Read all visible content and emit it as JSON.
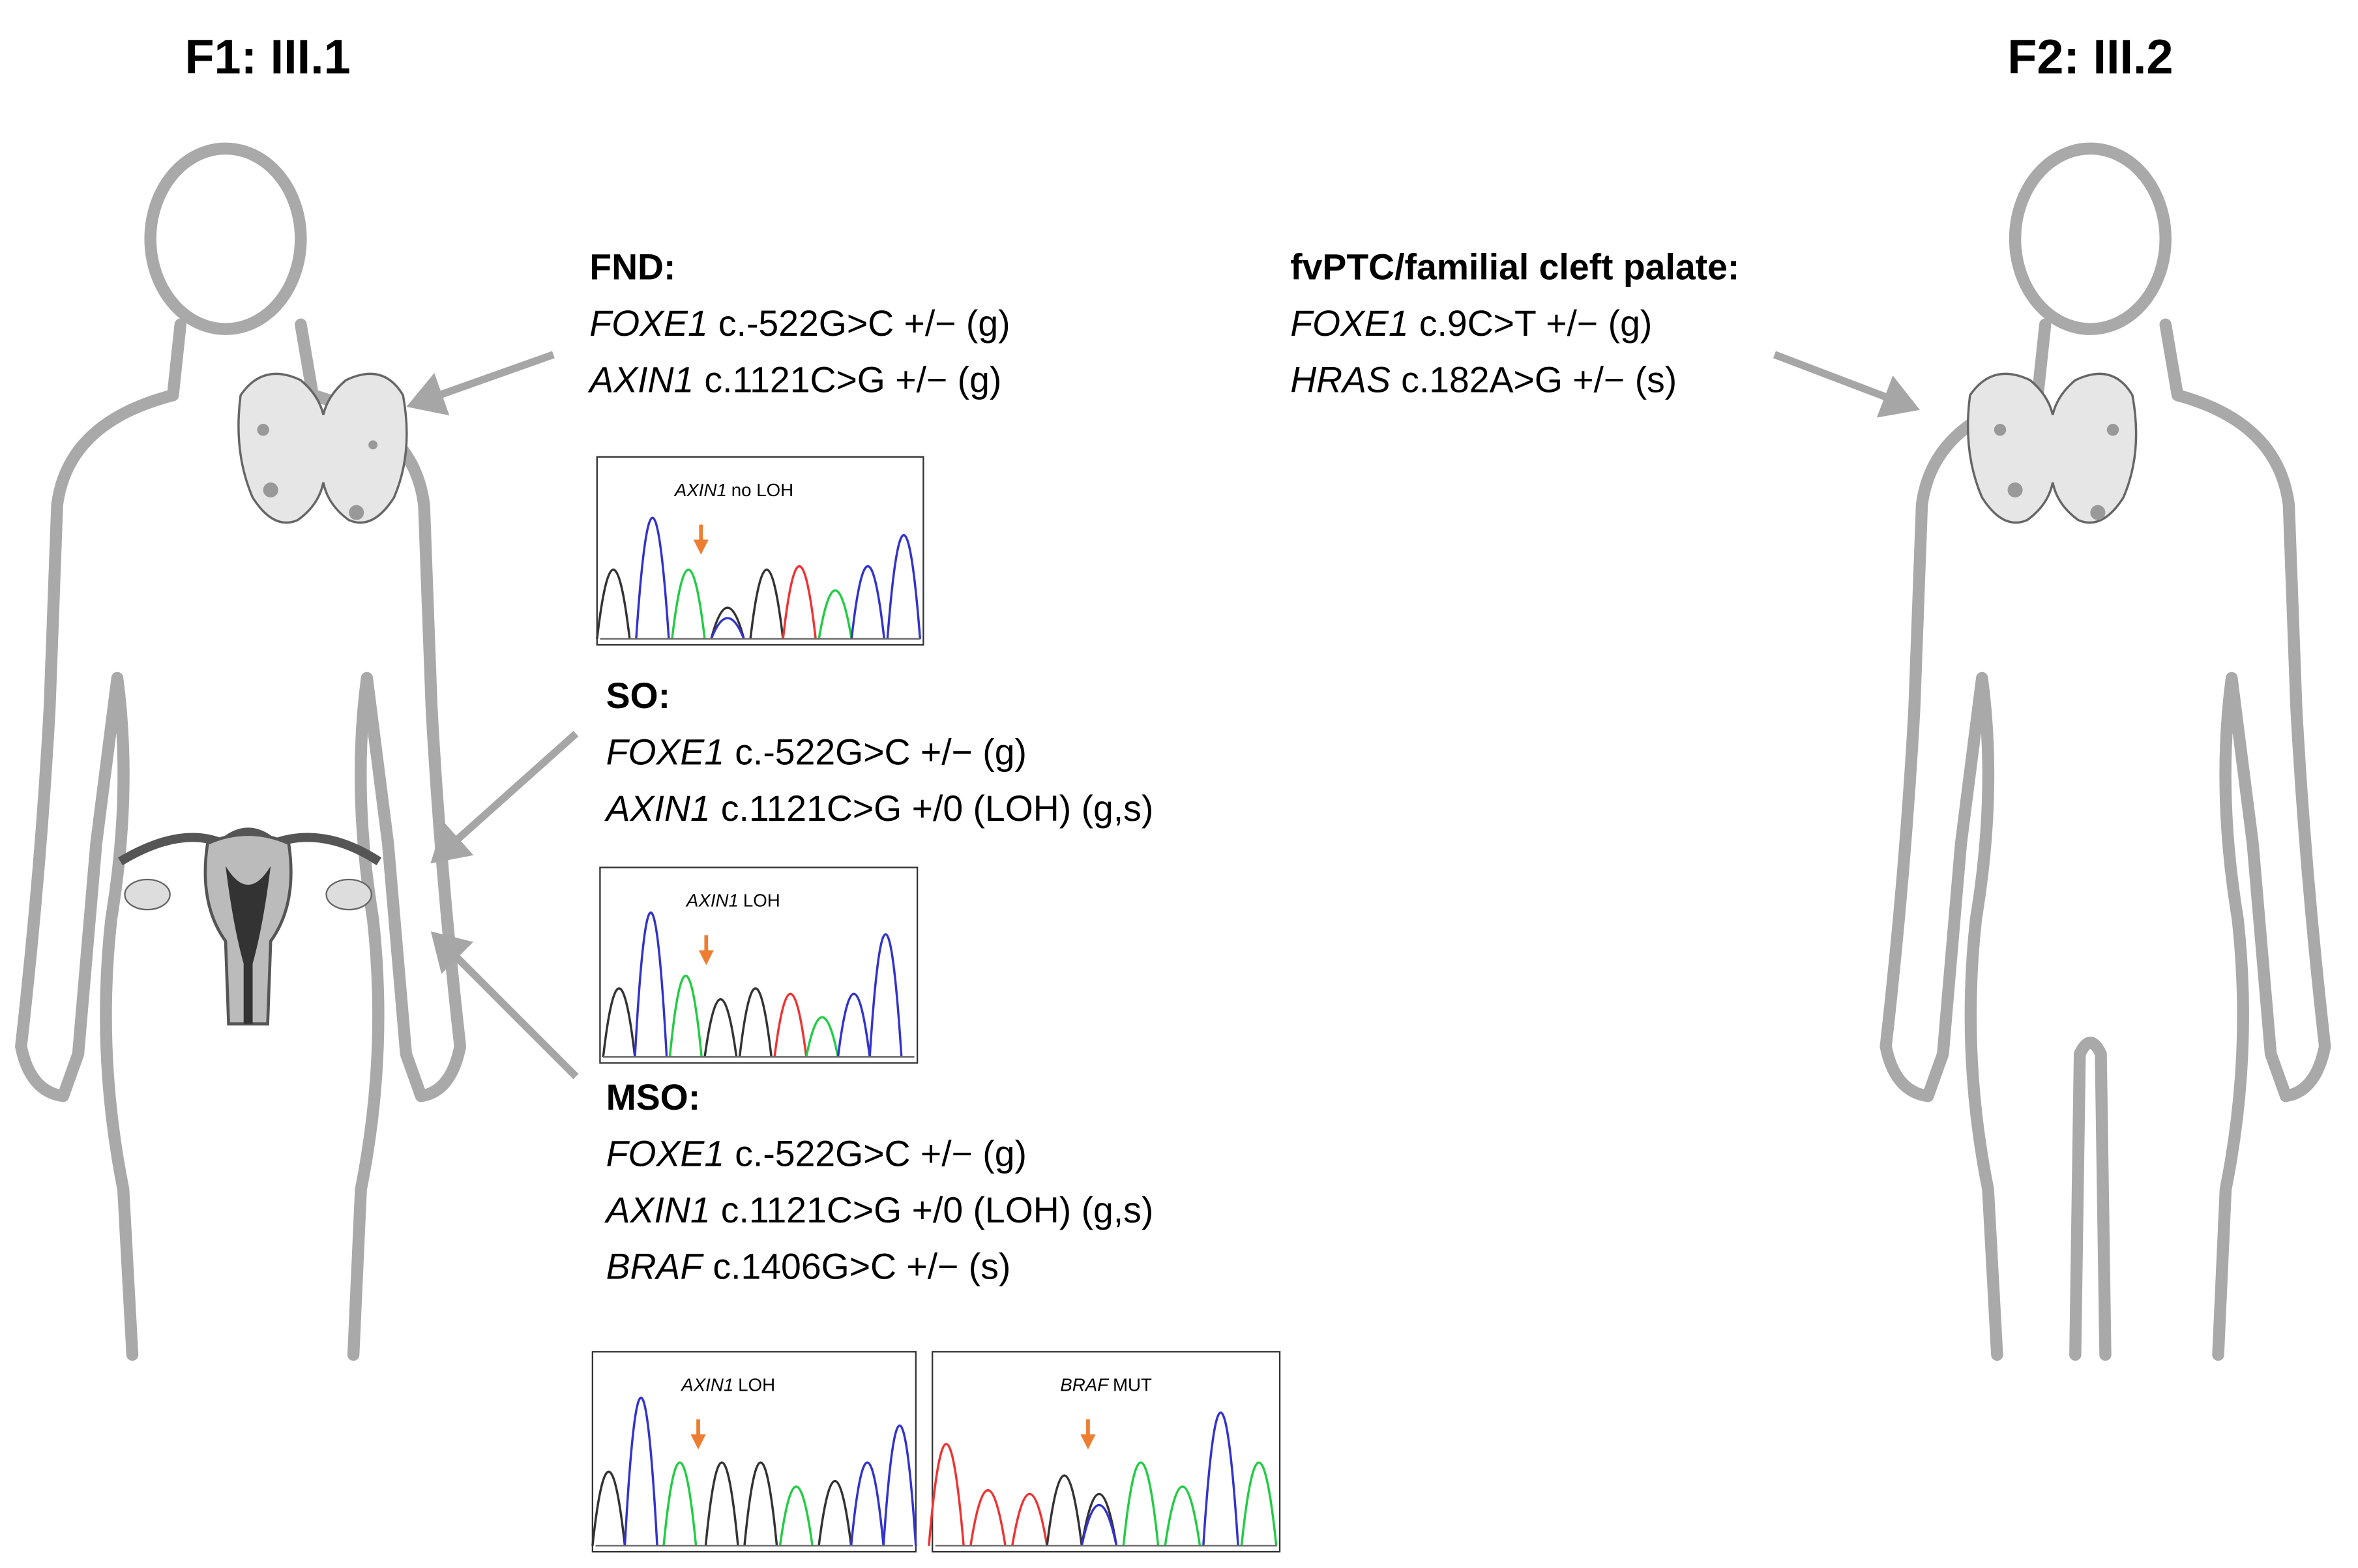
{
  "left": {
    "title": "F1: III.1",
    "sections": [
      {
        "heading": "FND:",
        "lines": [
          {
            "gene": "FOXE1",
            "text": "c.-522G>C +/− (g)"
          },
          {
            "gene": "AXIN1",
            "text": "c.1121C>G +/− (g)"
          }
        ]
      },
      {
        "heading": "SO:",
        "lines": [
          {
            "gene": "FOXE1",
            "text": "c.-522G>C +/− (g)"
          },
          {
            "gene": "AXIN1",
            "text": "c.1121C>G +/0 (LOH) (g,s)"
          }
        ]
      },
      {
        "heading": "MSO:",
        "lines": [
          {
            "gene": "FOXE1",
            "text": "c.-522G>C +/− (g)"
          },
          {
            "gene": "AXIN1",
            "text": "c.1121C>G +/0 (LOH) (g,s)"
          },
          {
            "gene": "BRAF",
            "text": "c.1406G>C +/− (s)"
          }
        ]
      }
    ]
  },
  "right": {
    "title": "F2: III.2",
    "sections": [
      {
        "heading": "fvPTC/familial cleft palate:",
        "lines": [
          {
            "gene": "FOXE1",
            "text": "c.9C>T +/− (g)"
          },
          {
            "gene": "HRAS",
            "text": "c.182A>G +/− (s)"
          }
        ]
      }
    ]
  },
  "chromatograms": [
    {
      "gene": "AXIN1",
      "label": "no LOH"
    },
    {
      "gene": "AXIN1",
      "label": "LOH"
    },
    {
      "gene": "AXIN1",
      "label": "LOH"
    },
    {
      "gene": "BRAF",
      "label": "MUT"
    }
  ]
}
